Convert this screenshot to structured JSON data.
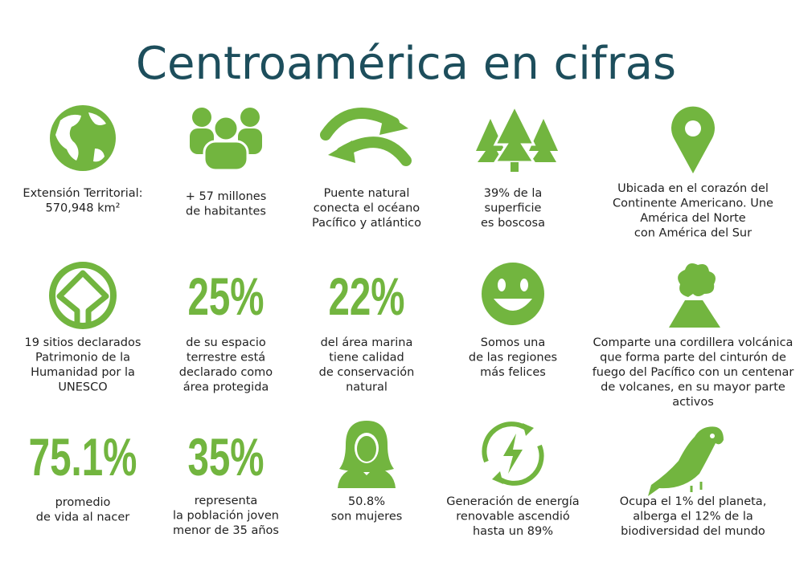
{
  "title": "Centroamérica en cifras",
  "items": [
    {
      "lines": [
        "Extensión Territorial:",
        "570,948 km²"
      ]
    },
    {
      "lines": [
        "+ 57 millones",
        "de habitantes"
      ]
    },
    {
      "lines": [
        "Puente natural",
        "conecta el océano",
        "Pacífico y atlántico"
      ]
    },
    {
      "lines": [
        "39% de la",
        "superficie",
        "es boscosa"
      ]
    },
    {
      "lines": [
        "Ubicada en el corazón del",
        "Continente Americano. Une",
        "América del Norte",
        "con América del Sur"
      ]
    },
    {
      "lines": [
        "19 sitios declarados",
        "Patrimonio de la",
        "Humanidad por la",
        "UNESCO"
      ]
    },
    {
      "figure": "25%",
      "lines": [
        "de su espacio",
        "terrestre está",
        "declarado como",
        "área protegida"
      ]
    },
    {
      "figure": "22%",
      "lines": [
        "del área marina",
        "tiene calidad",
        "de conservación",
        "natural"
      ]
    },
    {
      "lines": [
        "Somos una",
        "de las regiones",
        "más felices"
      ]
    },
    {
      "lines": [
        "Comparte una cordillera volcánica",
        "que forma parte del cinturón de",
        "fuego del Pacífico con un centenar",
        "de volcanes, en su mayor parte",
        "activos"
      ]
    },
    {
      "figure": "75.1%",
      "lines": [
        "promedio",
        "de vida al nacer"
      ]
    },
    {
      "figure": "35%",
      "lines": [
        "representa",
        "la población joven",
        "menor de 35 años"
      ]
    },
    {
      "lines": [
        "50.8%",
        "son mujeres"
      ]
    },
    {
      "lines": [
        "Generación de energía",
        "renovable ascendió",
        "hasta un 89%"
      ]
    },
    {
      "lines": [
        "Ocupa el 1% del planeta,",
        "alberga el 12% de la",
        "biodiversidad del mundo"
      ]
    }
  ]
}
